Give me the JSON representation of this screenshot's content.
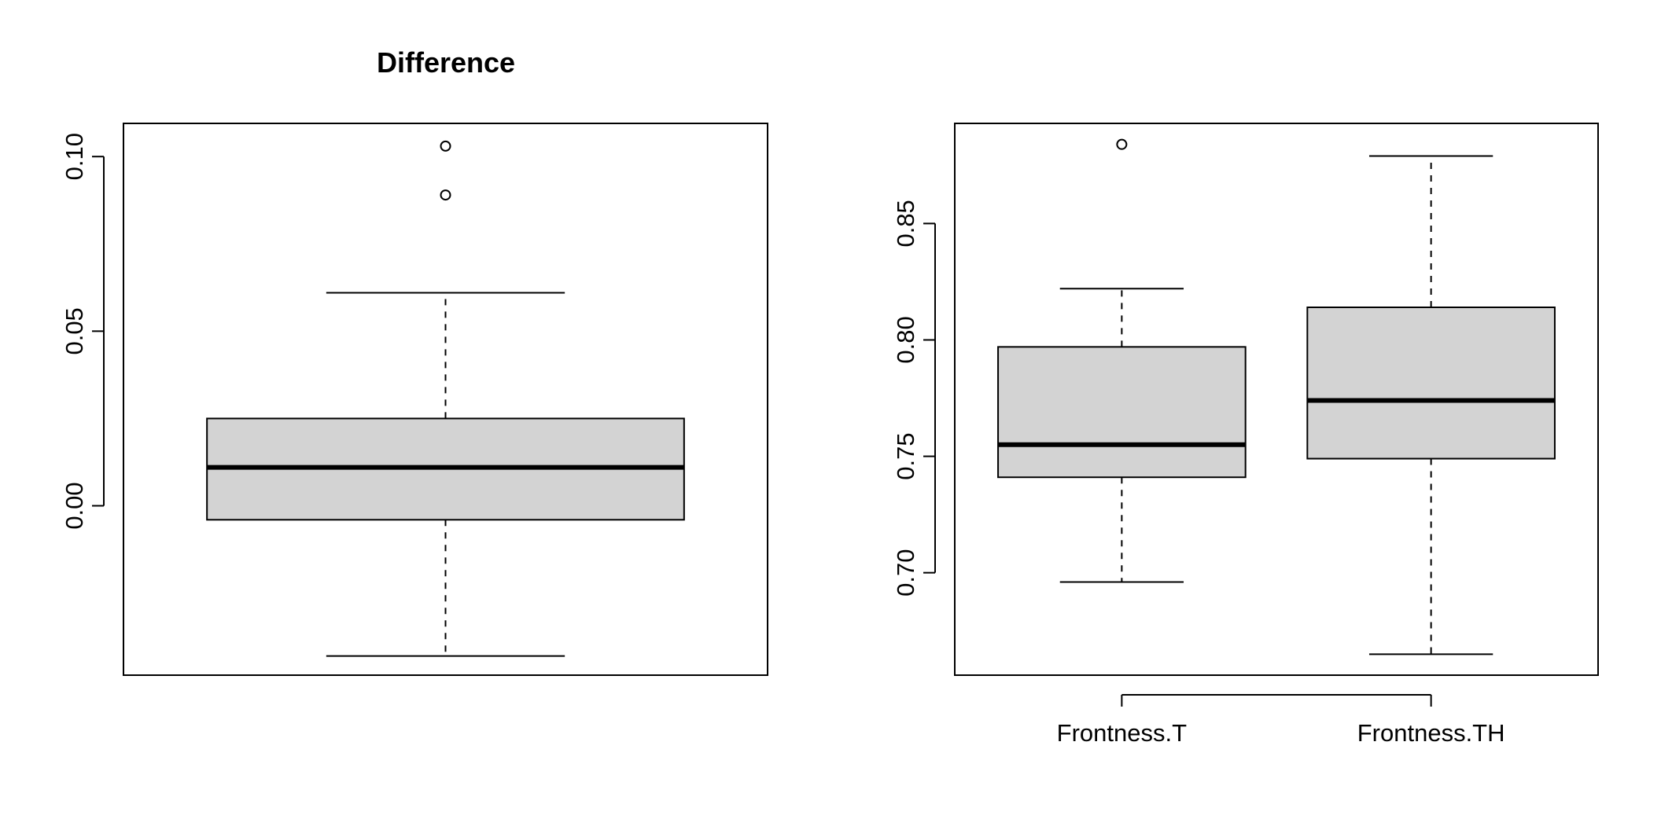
{
  "chart_data": [
    {
      "type": "boxplot",
      "title": "Difference",
      "categories": [
        ""
      ],
      "ylim": [
        -0.0485,
        0.1095
      ],
      "yticks": [
        0.0,
        0.05,
        0.1
      ],
      "ytick_labels": [
        "0.00",
        "0.05",
        "0.10"
      ],
      "show_x_axis": false,
      "boxes": [
        {
          "name": "",
          "whisker_low": -0.043,
          "q1": -0.004,
          "median": 0.011,
          "q3": 0.025,
          "whisker_high": 0.061,
          "outliers": [
            0.103,
            0.089
          ]
        }
      ],
      "colors": {
        "box_fill": "#d3d3d3",
        "stroke": "#000000"
      }
    },
    {
      "type": "boxplot",
      "title": "",
      "categories": [
        "Frontness.T",
        "Frontness.TH"
      ],
      "ylim": [
        0.656,
        0.893
      ],
      "yticks": [
        0.7,
        0.75,
        0.8,
        0.85
      ],
      "ytick_labels": [
        "0.70",
        "0.75",
        "0.80",
        "0.85"
      ],
      "show_x_axis": true,
      "boxes": [
        {
          "name": "Frontness.T",
          "whisker_low": 0.696,
          "q1": 0.741,
          "median": 0.755,
          "q3": 0.797,
          "whisker_high": 0.822,
          "outliers": [
            0.884
          ]
        },
        {
          "name": "Frontness.TH",
          "whisker_low": 0.665,
          "q1": 0.749,
          "median": 0.774,
          "q3": 0.814,
          "whisker_high": 0.879,
          "outliers": []
        }
      ],
      "colors": {
        "box_fill": "#d3d3d3",
        "stroke": "#000000"
      }
    }
  ]
}
